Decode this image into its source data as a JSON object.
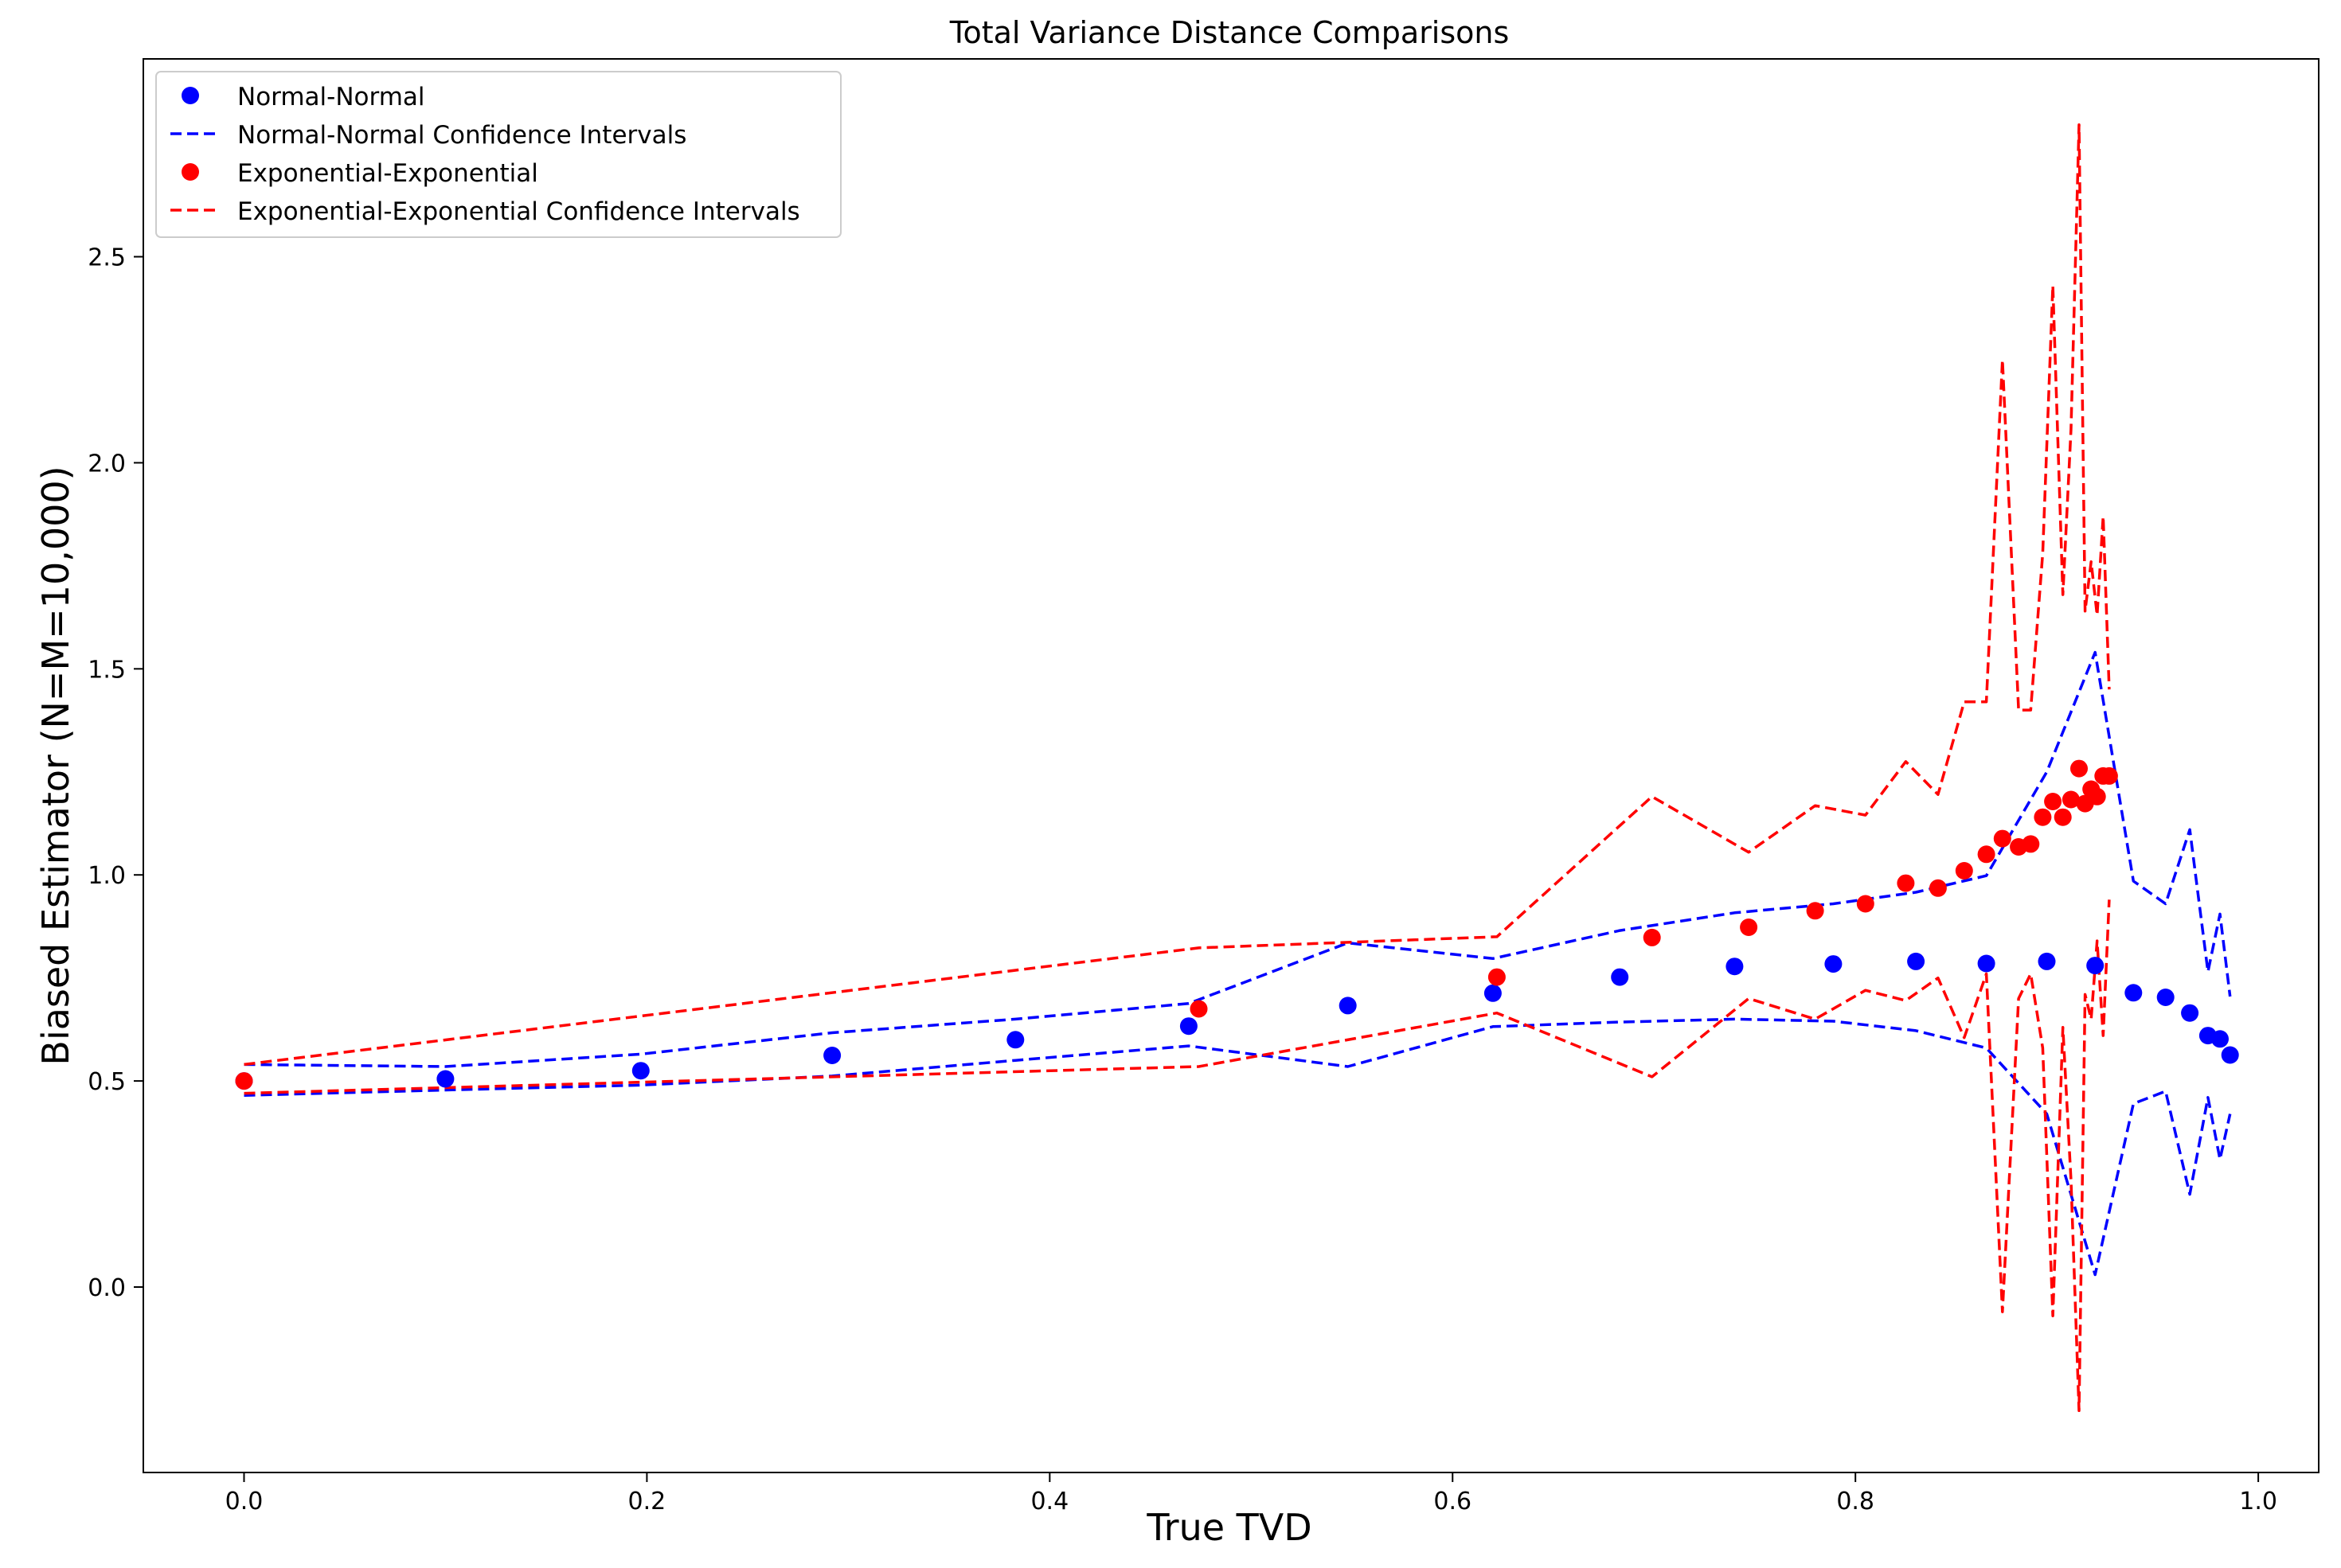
{
  "chart_data": {
    "type": "scatter",
    "title": "Total Variance Distance Comparisons",
    "xlabel": "True TVD",
    "ylabel": "Biased Estimator (N=M=10,000)",
    "xlim": [
      -0.05,
      1.03
    ],
    "ylim": [
      -0.45,
      2.98
    ],
    "x_ticks": [
      0.0,
      0.2,
      0.4,
      0.6,
      0.8,
      1.0
    ],
    "x_tick_labels": [
      "0.0",
      "0.2",
      "0.4",
      "0.6",
      "0.8",
      "1.0"
    ],
    "y_ticks": [
      0.0,
      0.5,
      1.0,
      1.5,
      2.0,
      2.5
    ],
    "y_tick_labels": [
      "0.0",
      "0.5",
      "1.0",
      "1.5",
      "2.0",
      "2.5"
    ],
    "grid": false,
    "legend_position": "top-left",
    "series": [
      {
        "name": "Normal-Normal",
        "kind": "points",
        "color": "#0000ff",
        "points": [
          [
            0.0,
            0.5
          ],
          [
            0.1,
            0.505
          ],
          [
            0.197,
            0.525
          ],
          [
            0.292,
            0.562
          ],
          [
            0.383,
            0.6
          ],
          [
            0.469,
            0.633
          ],
          [
            0.548,
            0.683
          ],
          [
            0.62,
            0.713
          ],
          [
            0.683,
            0.752
          ],
          [
            0.74,
            0.778
          ],
          [
            0.789,
            0.784
          ],
          [
            0.83,
            0.79
          ],
          [
            0.865,
            0.785
          ],
          [
            0.895,
            0.79
          ],
          [
            0.919,
            0.78
          ],
          [
            0.938,
            0.714
          ],
          [
            0.954,
            0.703
          ],
          [
            0.966,
            0.665
          ],
          [
            0.975,
            0.61
          ],
          [
            0.981,
            0.602
          ],
          [
            0.986,
            0.563
          ]
        ]
      },
      {
        "name": "Normal-Normal Confidence Intervals",
        "kind": "dashed",
        "color": "#0000ff",
        "lines": [
          [
            [
              0.0,
              0.54
            ],
            [
              0.1,
              0.535
            ],
            [
              0.197,
              0.565
            ],
            [
              0.292,
              0.617
            ],
            [
              0.383,
              0.65
            ],
            [
              0.469,
              0.688
            ],
            [
              0.548,
              0.835
            ],
            [
              0.62,
              0.797
            ],
            [
              0.683,
              0.865
            ],
            [
              0.74,
              0.908
            ],
            [
              0.789,
              0.93
            ],
            [
              0.83,
              0.958
            ],
            [
              0.865,
              0.998
            ],
            [
              0.895,
              1.25
            ],
            [
              0.919,
              1.54
            ],
            [
              0.938,
              0.985
            ],
            [
              0.954,
              0.93
            ],
            [
              0.966,
              1.11
            ],
            [
              0.975,
              0.765
            ],
            [
              0.981,
              0.905
            ],
            [
              0.986,
              0.705
            ]
          ],
          [
            [
              0.0,
              0.465
            ],
            [
              0.1,
              0.478
            ],
            [
              0.197,
              0.49
            ],
            [
              0.292,
              0.512
            ],
            [
              0.383,
              0.55
            ],
            [
              0.469,
              0.585
            ],
            [
              0.548,
              0.535
            ],
            [
              0.62,
              0.632
            ],
            [
              0.683,
              0.643
            ],
            [
              0.74,
              0.65
            ],
            [
              0.789,
              0.645
            ],
            [
              0.83,
              0.622
            ],
            [
              0.865,
              0.58
            ],
            [
              0.895,
              0.42
            ],
            [
              0.919,
              0.03
            ],
            [
              0.938,
              0.445
            ],
            [
              0.954,
              0.475
            ],
            [
              0.966,
              0.225
            ],
            [
              0.975,
              0.46
            ],
            [
              0.981,
              0.31
            ],
            [
              0.986,
              0.42
            ]
          ]
        ]
      },
      {
        "name": "Exponential-Exponential",
        "kind": "points",
        "color": "#ff0000",
        "points": [
          [
            0.0,
            0.5
          ],
          [
            0.474,
            0.675
          ],
          [
            0.622,
            0.752
          ],
          [
            0.699,
            0.848
          ],
          [
            0.747,
            0.873
          ],
          [
            0.78,
            0.913
          ],
          [
            0.805,
            0.93
          ],
          [
            0.825,
            0.98
          ],
          [
            0.841,
            0.968
          ],
          [
            0.854,
            1.01
          ],
          [
            0.865,
            1.05
          ],
          [
            0.873,
            1.088
          ],
          [
            0.881,
            1.068
          ],
          [
            0.887,
            1.075
          ],
          [
            0.893,
            1.14
          ],
          [
            0.898,
            1.178
          ],
          [
            0.903,
            1.14
          ],
          [
            0.907,
            1.183
          ],
          [
            0.911,
            1.258
          ],
          [
            0.914,
            1.173
          ],
          [
            0.917,
            1.208
          ],
          [
            0.92,
            1.19
          ],
          [
            0.923,
            1.24
          ],
          [
            0.926,
            1.24
          ]
        ]
      },
      {
        "name": "Exponential-Exponential Confidence Intervals",
        "kind": "dashed",
        "color": "#ff0000",
        "lines": [
          [
            [
              0.0,
              0.54
            ],
            [
              0.474,
              0.823
            ],
            [
              0.622,
              0.85
            ],
            [
              0.699,
              1.19
            ],
            [
              0.747,
              1.055
            ],
            [
              0.78,
              1.168
            ],
            [
              0.805,
              1.145
            ],
            [
              0.825,
              1.275
            ],
            [
              0.841,
              1.195
            ],
            [
              0.854,
              1.42
            ],
            [
              0.865,
              1.42
            ],
            [
              0.873,
              2.25
            ],
            [
              0.881,
              1.4
            ],
            [
              0.887,
              1.4
            ],
            [
              0.893,
              1.78
            ],
            [
              0.898,
              2.43
            ],
            [
              0.903,
              1.68
            ],
            [
              0.907,
              2.08
            ],
            [
              0.911,
              2.82
            ],
            [
              0.914,
              1.64
            ],
            [
              0.917,
              1.76
            ],
            [
              0.92,
              1.63
            ],
            [
              0.923,
              1.87
            ],
            [
              0.926,
              1.45
            ]
          ],
          [
            [
              0.0,
              0.47
            ],
            [
              0.474,
              0.535
            ],
            [
              0.622,
              0.665
            ],
            [
              0.699,
              0.51
            ],
            [
              0.747,
              0.7
            ],
            [
              0.78,
              0.65
            ],
            [
              0.805,
              0.72
            ],
            [
              0.825,
              0.695
            ],
            [
              0.841,
              0.75
            ],
            [
              0.854,
              0.605
            ],
            [
              0.865,
              0.76
            ],
            [
              0.873,
              -0.06
            ],
            [
              0.881,
              0.7
            ],
            [
              0.887,
              0.76
            ],
            [
              0.893,
              0.58
            ],
            [
              0.898,
              -0.07
            ],
            [
              0.903,
              0.63
            ],
            [
              0.907,
              0.26
            ],
            [
              0.911,
              -0.3
            ],
            [
              0.914,
              0.71
            ],
            [
              0.917,
              0.65
            ],
            [
              0.92,
              0.84
            ],
            [
              0.923,
              0.61
            ],
            [
              0.926,
              0.94
            ]
          ]
        ]
      }
    ]
  }
}
